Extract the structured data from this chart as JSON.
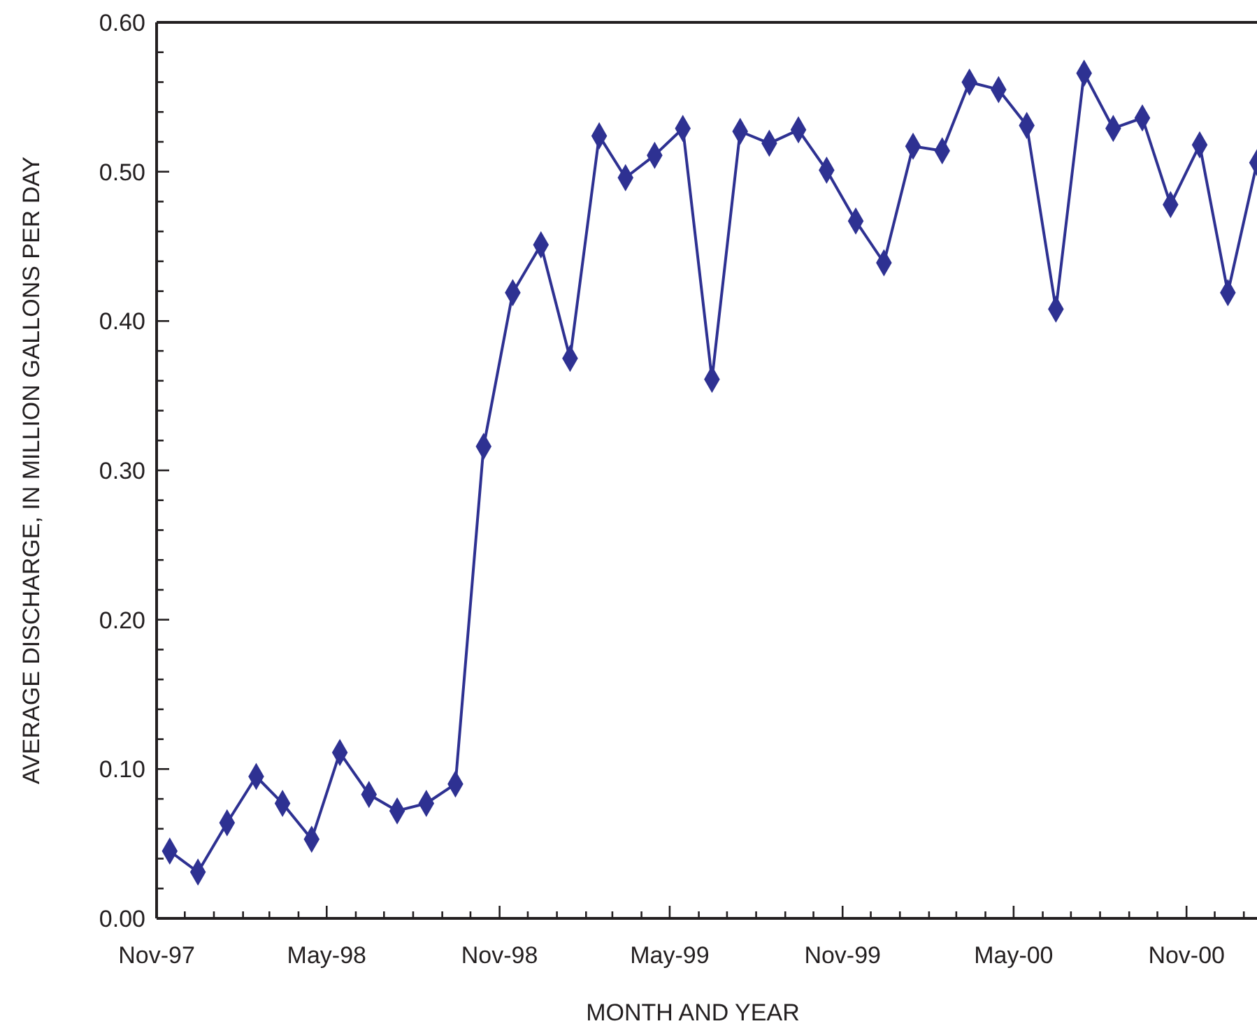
{
  "chart_data": {
    "type": "line",
    "xlabel": "MONTH AND YEAR",
    "ylabel": "AVERAGE DISCHARGE, IN MILLION GALLONS PER DAY",
    "marker": "diamond",
    "line_style": "solid",
    "grid": false,
    "x": [
      "1997-11-15",
      "1997-12-15",
      "1998-01-15",
      "1998-02-15",
      "1998-03-15",
      "1998-04-15",
      "1998-05-15",
      "1998-06-15",
      "1998-07-15",
      "1998-08-15",
      "1998-09-15",
      "1998-10-15",
      "1998-11-15",
      "1998-12-15",
      "1999-01-15",
      "1999-02-15",
      "1999-03-15",
      "1999-04-15",
      "1999-05-15",
      "1999-06-15",
      "1999-07-15",
      "1999-08-15",
      "1999-09-15",
      "1999-10-15",
      "1999-11-15",
      "1999-12-15",
      "2000-01-15",
      "2000-02-15",
      "2000-03-15",
      "2000-04-15",
      "2000-05-15",
      "2000-06-15",
      "2000-07-15",
      "2000-08-15",
      "2000-09-15",
      "2000-10-15",
      "2000-11-15",
      "2000-12-15",
      "2001-01-15"
    ],
    "series": [
      {
        "color": "#2e3192",
        "values": [
          0.045,
          0.031,
          0.064,
          0.095,
          0.077,
          0.053,
          0.111,
          0.083,
          0.072,
          0.077,
          0.09,
          0.316,
          0.419,
          0.451,
          0.375,
          0.524,
          0.496,
          0.511,
          0.529,
          0.361,
          0.527,
          0.519,
          0.528,
          0.501,
          0.467,
          0.439,
          0.517,
          0.514,
          0.56,
          0.555,
          0.531,
          0.408,
          0.566,
          0.529,
          0.536,
          0.478,
          0.518,
          0.419,
          0.506
        ]
      }
    ],
    "xlim": [
      "1997-11-01",
      "2001-01-15"
    ],
    "xticks": [
      {
        "value": "1997-11-01",
        "label": "Nov-97"
      },
      {
        "value": "1997-12-01",
        "label": null
      },
      {
        "value": "1998-01-01",
        "label": null
      },
      {
        "value": "1998-02-01",
        "label": null
      },
      {
        "value": "1998-03-01",
        "label": null
      },
      {
        "value": "1998-04-01",
        "label": null
      },
      {
        "value": "1998-05-01",
        "label": "May-98"
      },
      {
        "value": "1998-06-01",
        "label": null
      },
      {
        "value": "1998-07-01",
        "label": null
      },
      {
        "value": "1998-08-01",
        "label": null
      },
      {
        "value": "1998-09-01",
        "label": null
      },
      {
        "value": "1998-10-01",
        "label": null
      },
      {
        "value": "1998-11-01",
        "label": "Nov-98"
      },
      {
        "value": "1998-12-01",
        "label": null
      },
      {
        "value": "1999-01-01",
        "label": null
      },
      {
        "value": "1999-02-01",
        "label": null
      },
      {
        "value": "1999-03-01",
        "label": null
      },
      {
        "value": "1999-04-01",
        "label": null
      },
      {
        "value": "1999-05-01",
        "label": "May-99"
      },
      {
        "value": "1999-06-01",
        "label": null
      },
      {
        "value": "1999-07-01",
        "label": null
      },
      {
        "value": "1999-08-01",
        "label": null
      },
      {
        "value": "1999-09-01",
        "label": null
      },
      {
        "value": "1999-10-01",
        "label": null
      },
      {
        "value": "1999-11-01",
        "label": "Nov-99"
      },
      {
        "value": "1999-12-01",
        "label": null
      },
      {
        "value": "2000-01-01",
        "label": null
      },
      {
        "value": "2000-02-01",
        "label": null
      },
      {
        "value": "2000-03-01",
        "label": null
      },
      {
        "value": "2000-04-01",
        "label": null
      },
      {
        "value": "2000-05-01",
        "label": "May-00"
      },
      {
        "value": "2000-06-01",
        "label": null
      },
      {
        "value": "2000-07-01",
        "label": null
      },
      {
        "value": "2000-08-01",
        "label": null
      },
      {
        "value": "2000-09-01",
        "label": null
      },
      {
        "value": "2000-10-01",
        "label": null
      },
      {
        "value": "2000-11-01",
        "label": "Nov-00"
      },
      {
        "value": "2000-12-01",
        "label": null
      },
      {
        "value": "2001-01-01",
        "label": null
      }
    ],
    "ylim": [
      0,
      0.6
    ],
    "yticks": [
      {
        "value": 0,
        "label": "0.00"
      },
      {
        "value": 0.02,
        "label": null
      },
      {
        "value": 0.04,
        "label": null
      },
      {
        "value": 0.06,
        "label": null
      },
      {
        "value": 0.08,
        "label": null
      },
      {
        "value": 0.1,
        "label": "0.10"
      },
      {
        "value": 0.12,
        "label": null
      },
      {
        "value": 0.14,
        "label": null
      },
      {
        "value": 0.16,
        "label": null
      },
      {
        "value": 0.18,
        "label": null
      },
      {
        "value": 0.2,
        "label": "0.20"
      },
      {
        "value": 0.22,
        "label": null
      },
      {
        "value": 0.24,
        "label": null
      },
      {
        "value": 0.26,
        "label": null
      },
      {
        "value": 0.28,
        "label": null
      },
      {
        "value": 0.3,
        "label": "0.30"
      },
      {
        "value": 0.32,
        "label": null
      },
      {
        "value": 0.34,
        "label": null
      },
      {
        "value": 0.36,
        "label": null
      },
      {
        "value": 0.38,
        "label": null
      },
      {
        "value": 0.4,
        "label": "0.40"
      },
      {
        "value": 0.42,
        "label": null
      },
      {
        "value": 0.44,
        "label": null
      },
      {
        "value": 0.46,
        "label": null
      },
      {
        "value": 0.48,
        "label": null
      },
      {
        "value": 0.5,
        "label": "0.50"
      },
      {
        "value": 0.52,
        "label": null
      },
      {
        "value": 0.54,
        "label": null
      },
      {
        "value": 0.56,
        "label": null
      },
      {
        "value": 0.58,
        "label": null
      },
      {
        "value": 0.6,
        "label": "0.60"
      }
    ]
  }
}
